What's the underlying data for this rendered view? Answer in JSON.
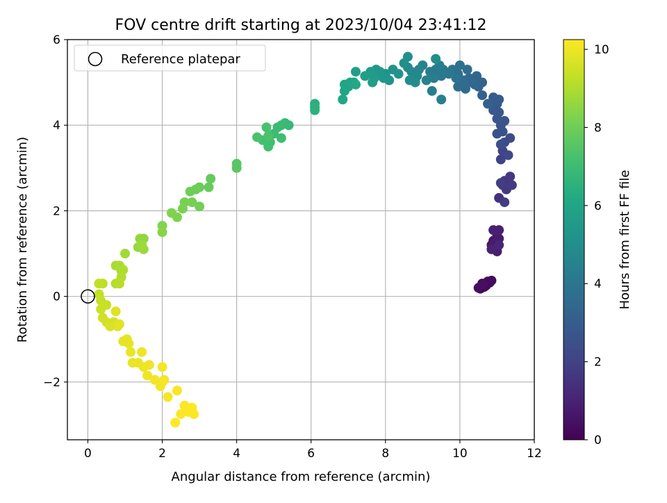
{
  "chart_data": {
    "type": "scatter",
    "title": "FOV centre drift starting at 2023/10/04 23:41:12",
    "xlabel": "Angular distance from reference (arcmin)",
    "ylabel": "Rotation from reference (arcmin)",
    "xlim": [
      -0.55,
      12.0
    ],
    "ylim": [
      -3.35,
      6.0
    ],
    "xticks": [
      0,
      2,
      4,
      6,
      8,
      10,
      12
    ],
    "yticks": [
      -2,
      0,
      2,
      4,
      6
    ],
    "xtick_labels": [
      "0",
      "2",
      "4",
      "6",
      "8",
      "10",
      "12"
    ],
    "ytick_labels": [
      "−2",
      "0",
      "2",
      "4",
      "6"
    ],
    "grid": true,
    "legend": {
      "position": "top-left",
      "entries": [
        "Reference platepar"
      ]
    },
    "reference_point": {
      "x": 0,
      "y": 0
    },
    "colorbar": {
      "label": "Hours from first FF file",
      "range": [
        0,
        10.25
      ],
      "ticks": [
        0,
        2,
        4,
        6,
        8,
        10
      ],
      "tick_labels": [
        "0",
        "2",
        "4",
        "6",
        "8",
        "10"
      ],
      "colormap": "viridis"
    },
    "series": [
      {
        "columns": [
          "x",
          "y",
          "hours"
        ],
        "points": [
          [
            10.55,
            0.18,
            0.0
          ],
          [
            10.6,
            0.3,
            0.05
          ],
          [
            10.65,
            0.22,
            0.1
          ],
          [
            10.7,
            0.25,
            0.15
          ],
          [
            10.75,
            0.35,
            0.2
          ],
          [
            10.8,
            0.32,
            0.25
          ],
          [
            10.85,
            0.37,
            0.3
          ],
          [
            10.5,
            0.2,
            0.35
          ],
          [
            10.62,
            0.28,
            0.4
          ],
          [
            10.85,
            1.2,
            0.6
          ],
          [
            10.9,
            1.3,
            0.65
          ],
          [
            11.0,
            1.4,
            0.7
          ],
          [
            10.95,
            1.25,
            0.75
          ],
          [
            11.05,
            1.35,
            0.8
          ],
          [
            11.0,
            1.05,
            0.85
          ],
          [
            10.9,
            1.55,
            0.9
          ],
          [
            11.05,
            1.55,
            0.95
          ],
          [
            10.85,
            1.1,
            1.0
          ],
          [
            11.05,
            1.2,
            1.05
          ],
          [
            11.05,
            2.3,
            1.4
          ],
          [
            11.15,
            2.6,
            1.5
          ],
          [
            11.2,
            2.7,
            1.55
          ],
          [
            11.3,
            2.65,
            1.6
          ],
          [
            11.35,
            2.8,
            1.65
          ],
          [
            11.25,
            2.5,
            1.7
          ],
          [
            11.4,
            2.6,
            1.75
          ],
          [
            11.2,
            2.2,
            1.8
          ],
          [
            11.1,
            2.65,
            1.85
          ],
          [
            11.1,
            3.2,
            2.0
          ],
          [
            11.15,
            3.4,
            2.1
          ],
          [
            11.3,
            3.3,
            2.2
          ],
          [
            11.35,
            3.7,
            2.3
          ],
          [
            11.2,
            3.6,
            2.35
          ],
          [
            11.1,
            3.55,
            2.4
          ],
          [
            11.0,
            3.8,
            2.5
          ],
          [
            11.15,
            3.85,
            2.55
          ],
          [
            11.1,
            4.0,
            2.6
          ],
          [
            11.2,
            4.1,
            2.7
          ],
          [
            11.0,
            4.15,
            2.75
          ],
          [
            11.05,
            4.3,
            2.8
          ],
          [
            10.9,
            4.35,
            2.85
          ],
          [
            11.0,
            4.5,
            2.9
          ],
          [
            10.9,
            4.65,
            2.95
          ],
          [
            11.05,
            4.6,
            3.0
          ],
          [
            10.75,
            4.5,
            3.1
          ],
          [
            10.6,
            4.7,
            3.15
          ],
          [
            10.5,
            4.9,
            3.2
          ],
          [
            10.6,
            5.0,
            3.3
          ],
          [
            10.45,
            5.15,
            3.35
          ],
          [
            10.4,
            4.95,
            3.4
          ],
          [
            10.25,
            5.1,
            3.45
          ],
          [
            10.3,
            5.0,
            3.5
          ],
          [
            10.15,
            4.85,
            3.55
          ],
          [
            10.1,
            5.05,
            3.6
          ],
          [
            9.95,
            4.9,
            3.65
          ],
          [
            9.95,
            5.2,
            3.7
          ],
          [
            10.2,
            5.3,
            3.75
          ],
          [
            10.0,
            5.4,
            3.8
          ],
          [
            9.9,
            5.1,
            3.85
          ],
          [
            9.8,
            5.3,
            3.9
          ],
          [
            9.7,
            5.2,
            4.05
          ],
          [
            9.55,
            5.3,
            4.1
          ],
          [
            9.5,
            5.15,
            4.15
          ],
          [
            9.35,
            5.3,
            4.2
          ],
          [
            9.2,
            5.25,
            4.25
          ],
          [
            9.3,
            5.1,
            4.3
          ],
          [
            9.45,
            5.4,
            4.35
          ],
          [
            9.25,
            4.8,
            4.4
          ],
          [
            9.5,
            4.6,
            4.45
          ],
          [
            9.1,
            5.05,
            4.5
          ],
          [
            9.0,
            5.4,
            4.6
          ],
          [
            8.9,
            5.3,
            4.7
          ],
          [
            8.85,
            5.15,
            4.75
          ],
          [
            8.7,
            5.25,
            4.8
          ],
          [
            8.6,
            5.35,
            4.85
          ],
          [
            8.65,
            5.05,
            4.9
          ],
          [
            8.8,
            5.0,
            4.95
          ],
          [
            9.35,
            5.55,
            5.0
          ],
          [
            8.6,
            5.6,
            5.05
          ],
          [
            8.5,
            5.45,
            5.1
          ],
          [
            8.35,
            5.2,
            5.15
          ],
          [
            8.2,
            5.3,
            5.2
          ],
          [
            8.1,
            5.05,
            5.25
          ],
          [
            8.0,
            5.2,
            5.3
          ],
          [
            7.95,
            5.1,
            5.35
          ],
          [
            7.85,
            5.25,
            5.4
          ],
          [
            7.75,
            5.3,
            5.5
          ],
          [
            7.7,
            5.1,
            5.55
          ],
          [
            7.6,
            5.25,
            5.6
          ],
          [
            7.65,
            5.0,
            5.65
          ],
          [
            7.45,
            5.15,
            5.7
          ],
          [
            7.2,
            5.25,
            5.8
          ],
          [
            7.15,
            5.0,
            5.85
          ],
          [
            7.0,
            4.9,
            5.9
          ],
          [
            6.9,
            4.8,
            5.95
          ],
          [
            6.9,
            4.95,
            6.0
          ],
          [
            7.05,
            5.0,
            6.05
          ],
          [
            6.85,
            4.6,
            6.1
          ],
          [
            7.2,
            4.95,
            6.15
          ],
          [
            6.1,
            4.5,
            6.4
          ],
          [
            6.1,
            4.35,
            6.45
          ],
          [
            6.1,
            4.42,
            6.5
          ],
          [
            5.4,
            4.0,
            6.8
          ],
          [
            5.3,
            4.05,
            6.85
          ],
          [
            5.2,
            4.0,
            6.9
          ],
          [
            5.1,
            3.95,
            6.95
          ],
          [
            5.0,
            3.8,
            7.0
          ],
          [
            5.2,
            3.7,
            7.05
          ],
          [
            4.9,
            3.6,
            7.1
          ],
          [
            4.85,
            3.5,
            7.15
          ],
          [
            4.7,
            3.65,
            7.2
          ],
          [
            4.8,
            3.95,
            7.25
          ],
          [
            4.55,
            3.72,
            7.3
          ],
          [
            4.85,
            3.75,
            7.35
          ],
          [
            4.0,
            3.1,
            7.55
          ],
          [
            4.0,
            3.0,
            7.6
          ],
          [
            3.3,
            2.75,
            7.8
          ],
          [
            3.25,
            2.55,
            7.85
          ],
          [
            3.0,
            2.55,
            7.9
          ],
          [
            2.9,
            2.5,
            7.95
          ],
          [
            2.75,
            2.45,
            8.0
          ],
          [
            3.0,
            2.1,
            8.05
          ],
          [
            2.8,
            2.2,
            8.1
          ],
          [
            2.6,
            2.2,
            8.15
          ],
          [
            2.55,
            2.05,
            8.2
          ],
          [
            2.4,
            1.85,
            8.25
          ],
          [
            2.25,
            1.95,
            8.3
          ],
          [
            2.0,
            1.65,
            8.35
          ],
          [
            2.0,
            1.5,
            8.4
          ],
          [
            1.5,
            1.35,
            8.55
          ],
          [
            1.4,
            1.35,
            8.6
          ],
          [
            1.35,
            1.15,
            8.65
          ],
          [
            1.5,
            1.1,
            8.7
          ],
          [
            1.45,
            1.2,
            8.75
          ],
          [
            1.0,
            1.0,
            8.8
          ],
          [
            0.9,
            0.6,
            8.85
          ],
          [
            0.75,
            0.72,
            8.9
          ],
          [
            0.85,
            0.72,
            8.95
          ],
          [
            0.95,
            0.62,
            9.0
          ],
          [
            0.9,
            0.45,
            9.05
          ],
          [
            0.75,
            0.3,
            9.1
          ],
          [
            0.85,
            0.3,
            9.15
          ],
          [
            0.4,
            0.3,
            9.2
          ],
          [
            0.3,
            0.3,
            9.25
          ],
          [
            0.3,
            0.05,
            9.3
          ],
          [
            0.35,
            -0.1,
            9.35
          ],
          [
            0.5,
            -0.2,
            9.4
          ],
          [
            0.35,
            -0.3,
            9.45
          ],
          [
            0.4,
            -0.5,
            9.5
          ],
          [
            0.5,
            -0.6,
            9.55
          ],
          [
            0.7,
            -0.6,
            9.6
          ],
          [
            0.6,
            -0.7,
            9.65
          ],
          [
            0.8,
            -0.7,
            9.7
          ],
          [
            0.75,
            -0.35,
            9.75
          ],
          [
            0.85,
            -0.65,
            9.8
          ],
          [
            0.95,
            -1.05,
            9.85
          ],
          [
            1.05,
            -1.0,
            9.88
          ],
          [
            1.1,
            -1.1,
            9.9
          ],
          [
            1.15,
            -1.3,
            9.93
          ],
          [
            1.2,
            -1.55,
            9.95
          ],
          [
            1.35,
            -1.55,
            9.97
          ],
          [
            1.45,
            -1.3,
            9.99
          ],
          [
            1.5,
            -1.65,
            10.0
          ],
          [
            1.65,
            -1.6,
            10.02
          ],
          [
            1.6,
            -1.85,
            10.04
          ],
          [
            1.8,
            -1.95,
            10.06
          ],
          [
            1.95,
            -2.1,
            10.08
          ],
          [
            2.0,
            -2.0,
            10.1
          ],
          [
            2.0,
            -1.65,
            10.12
          ],
          [
            2.05,
            -1.95,
            10.14
          ],
          [
            2.15,
            -2.35,
            10.16
          ],
          [
            2.4,
            -2.2,
            10.18
          ],
          [
            2.5,
            -2.75,
            10.2
          ],
          [
            2.6,
            -2.55,
            10.21
          ],
          [
            2.8,
            -2.6,
            10.22
          ],
          [
            2.7,
            -2.7,
            10.23
          ],
          [
            2.85,
            -2.75,
            10.24
          ],
          [
            2.35,
            -2.95,
            10.25
          ]
        ]
      }
    ]
  }
}
